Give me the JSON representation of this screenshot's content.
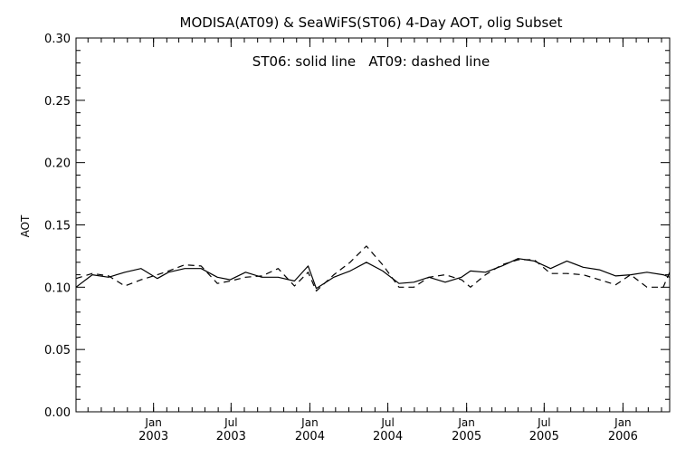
{
  "chart_data": {
    "type": "line",
    "title": "MODISA(AT09) & SeaWiFS(ST06) 4-Day AOT, olig Subset",
    "annotation": "ST06: solid line   AT09: dashed line",
    "ylabel": "AOT",
    "xlabel": "",
    "ylim": [
      0.0,
      0.3
    ],
    "xlim": [
      "2002-07-04",
      "2006-04-20"
    ],
    "y_ticks": [
      "0.00",
      "0.05",
      "0.10",
      "0.15",
      "0.20",
      "0.25",
      "0.30"
    ],
    "x_ticks": [
      {
        "date": "2003-01-01",
        "month": "Jan",
        "year": "2003"
      },
      {
        "date": "2003-07-01",
        "month": "Jul",
        "year": "2003"
      },
      {
        "date": "2004-01-01",
        "month": "Jan",
        "year": "2004"
      },
      {
        "date": "2004-07-01",
        "month": "Jul",
        "year": "2004"
      },
      {
        "date": "2005-01-01",
        "month": "Jan",
        "year": "2005"
      },
      {
        "date": "2005-07-01",
        "month": "Jul",
        "year": "2005"
      },
      {
        "date": "2006-01-01",
        "month": "Jan",
        "year": "2006"
      }
    ],
    "grid": false,
    "colors": {
      "line": "#000000",
      "background": "#ffffff"
    },
    "series": [
      {
        "name": "ST06",
        "style": "solid",
        "x": [
          "2002-07-04",
          "2002-08-11",
          "2002-09-18",
          "2002-10-26",
          "2002-12-03",
          "2003-01-10",
          "2003-02-05",
          "2003-03-15",
          "2003-04-22",
          "2003-05-30",
          "2003-06-29",
          "2003-08-04",
          "2003-09-11",
          "2003-10-19",
          "2003-11-26",
          "2003-12-28",
          "2004-01-16",
          "2004-02-26",
          "2004-04-04",
          "2004-05-12",
          "2004-06-19",
          "2004-07-27",
          "2004-08-31",
          "2004-10-05",
          "2004-11-12",
          "2004-12-20",
          "2005-01-10",
          "2005-02-14",
          "2005-03-24",
          "2005-05-01",
          "2005-06-08",
          "2005-07-16",
          "2005-08-23",
          "2005-09-30",
          "2005-11-07",
          "2005-12-15",
          "2006-01-19",
          "2006-02-26",
          "2006-04-05",
          "2006-04-20"
        ],
        "values": [
          0.1,
          0.11,
          0.108,
          0.112,
          0.115,
          0.107,
          0.112,
          0.115,
          0.115,
          0.108,
          0.106,
          0.112,
          0.108,
          0.108,
          0.105,
          0.117,
          0.099,
          0.108,
          0.113,
          0.12,
          0.113,
          0.103,
          0.104,
          0.108,
          0.104,
          0.108,
          0.113,
          0.112,
          0.117,
          0.123,
          0.121,
          0.115,
          0.121,
          0.116,
          0.114,
          0.109,
          0.11,
          0.112,
          0.11,
          0.108
        ]
      },
      {
        "name": "AT09",
        "style": "dashed",
        "x": [
          "2002-07-04",
          "2002-08-11",
          "2002-09-18",
          "2002-10-26",
          "2002-12-03",
          "2003-01-10",
          "2003-02-05",
          "2003-03-15",
          "2003-04-22",
          "2003-05-30",
          "2003-06-29",
          "2003-08-04",
          "2003-09-11",
          "2003-10-19",
          "2003-11-26",
          "2003-12-28",
          "2004-01-16",
          "2004-02-26",
          "2004-04-04",
          "2004-05-12",
          "2004-06-19",
          "2004-07-27",
          "2004-08-31",
          "2004-10-05",
          "2004-11-12",
          "2004-12-20",
          "2005-01-10",
          "2005-02-14",
          "2005-03-24",
          "2005-05-01",
          "2005-06-08",
          "2005-07-16",
          "2005-08-23",
          "2005-09-30",
          "2005-11-07",
          "2005-12-15",
          "2006-01-19",
          "2006-02-26",
          "2006-04-05",
          "2006-04-20"
        ],
        "values": [
          0.107,
          0.111,
          0.109,
          0.101,
          0.106,
          0.11,
          0.113,
          0.118,
          0.117,
          0.103,
          0.105,
          0.108,
          0.109,
          0.115,
          0.101,
          0.112,
          0.097,
          0.11,
          0.12,
          0.133,
          0.118,
          0.1,
          0.1,
          0.108,
          0.11,
          0.106,
          0.1,
          0.11,
          0.118,
          0.122,
          0.122,
          0.111,
          0.111,
          0.11,
          0.106,
          0.102,
          0.11,
          0.1,
          0.1,
          0.112
        ]
      }
    ]
  }
}
